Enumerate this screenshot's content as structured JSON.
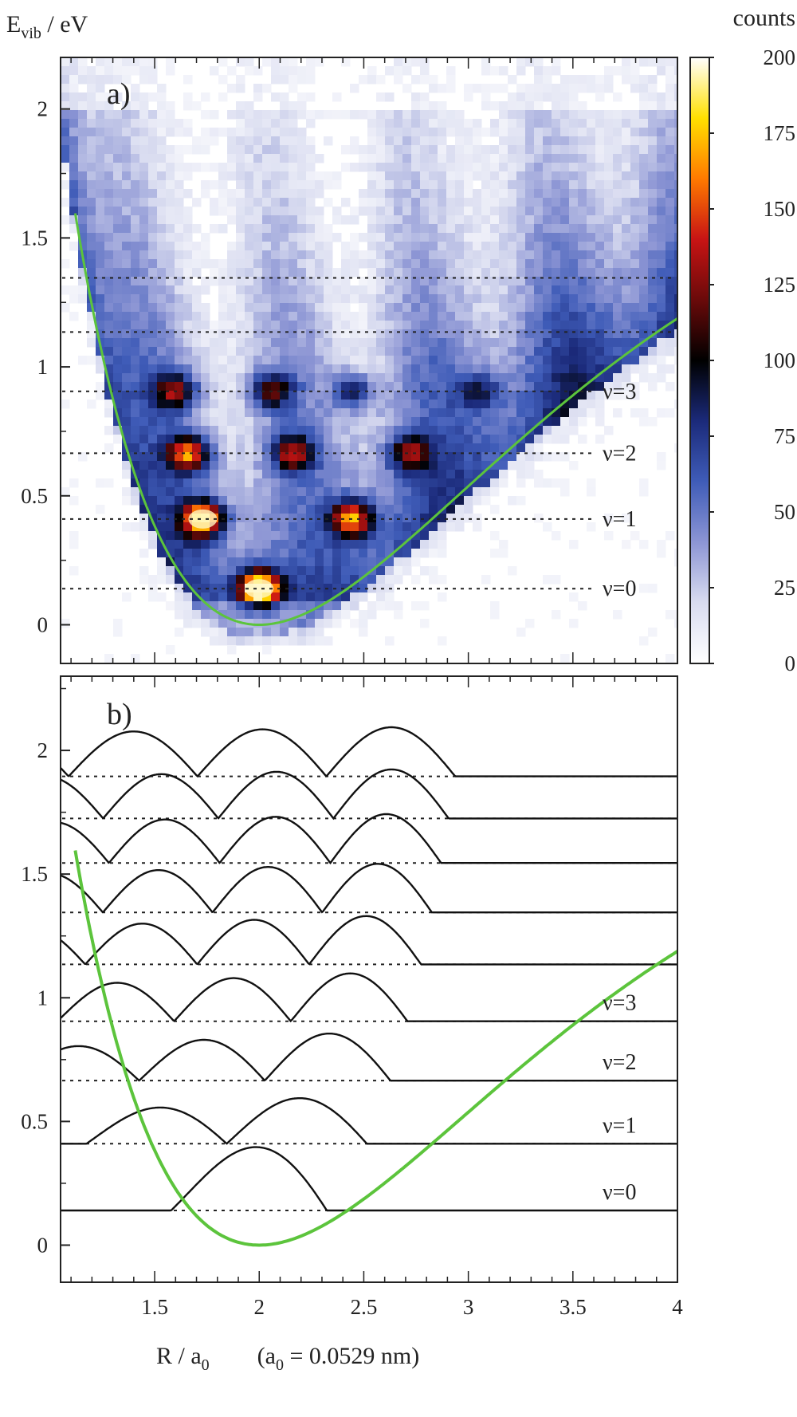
{
  "chart_data": [
    {
      "type": "heatmap",
      "panel_label": "a)",
      "ylabel_main": "E",
      "ylabel_sub": "vib",
      "ylabel_rest": " / eV",
      "ylim": [
        -0.15,
        2.2
      ],
      "xlim": [
        1.05,
        4.0
      ],
      "yticks": [
        "0",
        "0.5",
        "1",
        "1.5",
        "2"
      ],
      "ytick_values": [
        0,
        0.5,
        1,
        1.5,
        2
      ],
      "colorbar": {
        "title": "counts",
        "range": [
          0,
          200
        ],
        "ticks": [
          "0",
          "25",
          "50",
          "75",
          "100",
          "125",
          "150",
          "175",
          "200"
        ],
        "tick_values": [
          0,
          25,
          50,
          75,
          100,
          125,
          150,
          175,
          200
        ],
        "colors": [
          "#ffffff",
          "#d9dcf0",
          "#8c95d4",
          "#3f5cb8",
          "#1b2a7a",
          "#000000",
          "#6a0a0a",
          "#c81414",
          "#ff7a00",
          "#ffe000",
          "#ffffff"
        ]
      },
      "potential_color": "#5cc43c",
      "level_energies": [
        0.14,
        0.41,
        0.665,
        0.905,
        1.135,
        1.345
      ],
      "level_labels": [
        "ν=0",
        "ν=1",
        "ν=2",
        "ν=3"
      ],
      "blobs": [
        {
          "R": 2.0,
          "E": 0.14,
          "counts": 200
        },
        {
          "R": 1.73,
          "E": 0.41,
          "counts": 170
        },
        {
          "R": 2.44,
          "E": 0.41,
          "counts": 145
        },
        {
          "R": 1.66,
          "E": 0.665,
          "counts": 140
        },
        {
          "R": 2.16,
          "E": 0.665,
          "counts": 110
        },
        {
          "R": 2.72,
          "E": 0.665,
          "counts": 95
        },
        {
          "R": 1.6,
          "E": 0.905,
          "counts": 100
        },
        {
          "R": 2.06,
          "E": 0.905,
          "counts": 90
        },
        {
          "R": 2.45,
          "E": 0.905,
          "counts": 70
        },
        {
          "R": 3.05,
          "E": 0.905,
          "counts": 60
        }
      ]
    },
    {
      "type": "line",
      "panel_label": "b)",
      "xlabel": "R / a",
      "xlabel_sub": "0",
      "xlabel_note_open": "(a",
      "xlabel_note_sub": "0",
      "xlabel_note_rest": " = 0.0529 nm)",
      "xlim": [
        1.05,
        4.0
      ],
      "ylim": [
        -0.15,
        2.3
      ],
      "xticks": [
        "1.5",
        "2",
        "2.5",
        "3",
        "3.5",
        "4"
      ],
      "xtick_values": [
        1.5,
        2,
        2.5,
        3,
        3.5,
        4
      ],
      "yticks": [
        "0",
        "0.5",
        "1",
        "1.5",
        "2"
      ],
      "ytick_values": [
        0,
        0.5,
        1,
        1.5,
        2
      ],
      "potential_color": "#5cc43c",
      "level_energies": [
        0.14,
        0.41,
        0.665,
        0.905,
        1.135,
        1.345,
        1.545,
        1.725,
        1.895
      ],
      "level_labels": [
        "ν=0",
        "ν=1",
        "ν=2",
        "ν=3"
      ],
      "wavefunction_amplitude": 0.26
    }
  ]
}
